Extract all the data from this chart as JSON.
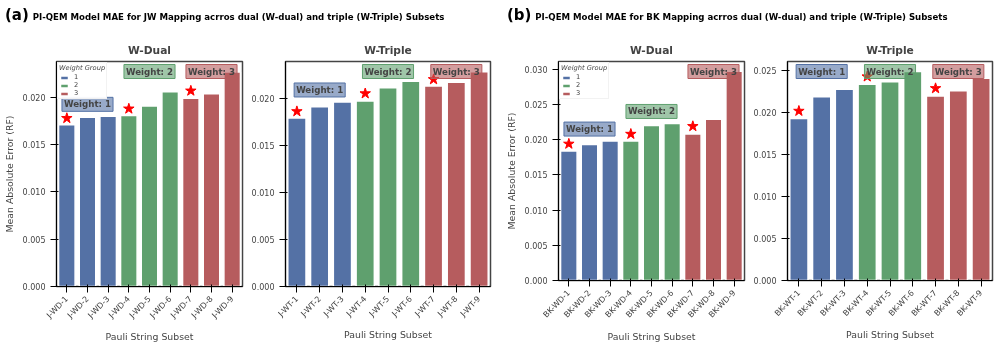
{
  "chart_data": [
    {
      "type": "bar",
      "title": "PI-QEM Model MAE for JW Mapping acrros dual (W-dual) and triple (W-Triple) Subsets",
      "subtitle": "W-Dual",
      "xlabel": "Pauli String Subset",
      "ylabel": "Mean Absolute Error (RF)",
      "legend_title": "Weight Group",
      "legend": "top left",
      "grid": false,
      "categories": [
        "J-WD-1",
        "J-WD-2",
        "J-WD-3",
        "J-WD-4",
        "J-WD-5",
        "J-WD-6",
        "J-WD-7",
        "J-WD-8",
        "J-WD-9"
      ],
      "ylim": [
        0,
        0.0238
      ],
      "yticks": [
        {
          "value": 0,
          "label": "0.000"
        },
        {
          "value": 0.005,
          "label": "0.005"
        },
        {
          "value": 0.01,
          "label": "0.010"
        },
        {
          "value": 0.015,
          "label": "0.015"
        },
        {
          "value": 0.02,
          "label": "0.020"
        }
      ],
      "series": [
        {
          "name": "1",
          "color": "#5471a5",
          "values": [
            0.0171,
            0.0179,
            0.018,
            null,
            null,
            null,
            null,
            null,
            null
          ]
        },
        {
          "name": "2",
          "color": "#5fa06e",
          "values": [
            null,
            null,
            null,
            0.0181,
            0.0191,
            0.0206,
            null,
            null,
            null
          ]
        },
        {
          "name": "3",
          "color": "#b65c5e",
          "values": [
            null,
            null,
            null,
            null,
            null,
            null,
            0.0199,
            0.0204,
            0.0227
          ]
        },
        {
          "type": "scatter",
          "marker": "star",
          "color": "#ff0000",
          "x": [
            "J-WD-1",
            "J-WD-4",
            "J-WD-7"
          ],
          "values": [
            0.0178,
            0.0188,
            0.0207
          ]
        }
      ],
      "annotations": [
        "(a)",
        "Weight: 1",
        "Weight: 2",
        "Weight: 3"
      ]
    },
    {
      "type": "bar",
      "subtitle": "W-Triple",
      "xlabel": "Pauli String Subset",
      "grid": false,
      "categories": [
        "J-WT-1",
        "J-WT-2",
        "J-WT-3",
        "J-WT-4",
        "J-WT-5",
        "J-WT-6",
        "J-WT-7",
        "J-WT-8",
        "J-WT-9"
      ],
      "ylim": [
        0,
        0.0239
      ],
      "yticks": [
        {
          "value": 0,
          "label": "0.000"
        },
        {
          "value": 0.005,
          "label": "0.005"
        },
        {
          "value": 0.01,
          "label": "0.010"
        },
        {
          "value": 0.015,
          "label": "0.015"
        },
        {
          "value": 0.02,
          "label": "0.020"
        }
      ],
      "series": [
        {
          "color": "#5471a5",
          "values": [
            0.0179,
            0.0191,
            0.0196,
            null,
            null,
            null,
            null,
            null,
            null
          ]
        },
        {
          "color": "#5fa06e",
          "values": [
            null,
            null,
            null,
            0.0197,
            0.0211,
            0.0218,
            null,
            null,
            null
          ]
        },
        {
          "color": "#b65c5e",
          "values": [
            null,
            null,
            null,
            null,
            null,
            null,
            0.0213,
            0.0217,
            0.0228
          ]
        },
        {
          "type": "scatter",
          "marker": "star",
          "color": "#ff0000",
          "x": [
            "J-WT-1",
            "J-WT-4",
            "J-WT-7"
          ],
          "values": [
            0.0186,
            0.0205,
            0.022
          ]
        }
      ],
      "annotations": [
        "Weight: 1",
        "Weight: 2",
        "Weight: 3"
      ]
    },
    {
      "type": "bar",
      "title": "PI-QEM Model MAE for BK Mapping acrros dual (W-dual) and triple (W-Triple) Subsets",
      "subtitle": "W-Dual",
      "xlabel": "Pauli String Subset",
      "ylabel": "Mean Absolute Error (RF)",
      "legend_title": "Weight Group",
      "legend": "top left",
      "grid": false,
      "categories": [
        "BK-WD-1",
        "BK-WD-2",
        "BK-WD-3",
        "BK-WD-4",
        "BK-WD-5",
        "BK-WD-6",
        "BK-WD-7",
        "BK-WD-8",
        "BK-WD-9"
      ],
      "ylim": [
        0,
        0.0311
      ],
      "yticks": [
        {
          "value": 0,
          "label": "0.000"
        },
        {
          "value": 0.005,
          "label": "0.005"
        },
        {
          "value": 0.01,
          "label": "0.010"
        },
        {
          "value": 0.015,
          "label": "0.015"
        },
        {
          "value": 0.02,
          "label": "0.020"
        },
        {
          "value": 0.025,
          "label": "0.025"
        },
        {
          "value": 0.03,
          "label": "0.030"
        }
      ],
      "series": [
        {
          "name": "1",
          "color": "#5471a5",
          "values": [
            0.0184,
            0.0193,
            0.0198,
            null,
            null,
            null,
            null,
            null,
            null
          ]
        },
        {
          "name": "2",
          "color": "#5fa06e",
          "values": [
            null,
            null,
            null,
            0.0198,
            0.022,
            0.0223,
            null,
            null,
            null
          ]
        },
        {
          "name": "3",
          "color": "#b65c5e",
          "values": [
            null,
            null,
            null,
            null,
            null,
            null,
            0.0208,
            0.0229,
            0.0297
          ]
        },
        {
          "type": "scatter",
          "marker": "star",
          "color": "#ff0000",
          "x": [
            "BK-WD-1",
            "BK-WD-4",
            "BK-WD-7"
          ],
          "values": [
            0.0194,
            0.0208,
            0.0219
          ]
        }
      ],
      "annotations": [
        "(b)",
        "Weight: 1",
        "Weight: 2",
        "Weight: 3"
      ]
    },
    {
      "type": "bar",
      "subtitle": "W-Triple",
      "xlabel": "Pauli String Subset",
      "grid": false,
      "categories": [
        "BK-WT-1",
        "BK-WT-2",
        "BK-WT-3",
        "BK-WT-4",
        "BK-WT-5",
        "BK-WT-6",
        "BK-WT-7",
        "BK-WT-8",
        "BK-WT-9"
      ],
      "ylim": [
        0,
        0.0261
      ],
      "yticks": [
        {
          "value": 0,
          "label": "0.000"
        },
        {
          "value": 0.005,
          "label": "0.005"
        },
        {
          "value": 0.01,
          "label": "0.010"
        },
        {
          "value": 0.015,
          "label": "0.015"
        },
        {
          "value": 0.02,
          "label": "0.020"
        },
        {
          "value": 0.025,
          "label": "0.025"
        }
      ],
      "series": [
        {
          "color": "#5471a5",
          "values": [
            0.0193,
            0.0219,
            0.0228,
            null,
            null,
            null,
            null,
            null,
            null
          ]
        },
        {
          "color": "#5fa06e",
          "values": [
            null,
            null,
            null,
            0.0234,
            0.0237,
            0.0249,
            null,
            null,
            null
          ]
        },
        {
          "color": "#b65c5e",
          "values": [
            null,
            null,
            null,
            null,
            null,
            null,
            0.022,
            0.0226,
            0.0241
          ]
        },
        {
          "type": "scatter",
          "marker": "star",
          "color": "#ff0000",
          "x": [
            "BK-WT-1",
            "BK-WT-4",
            "BK-WT-7"
          ],
          "values": [
            0.0202,
            0.0243,
            0.0229
          ]
        }
      ],
      "annotations": [
        "Weight: 1",
        "Weight: 2",
        "Weight: 3"
      ]
    }
  ]
}
